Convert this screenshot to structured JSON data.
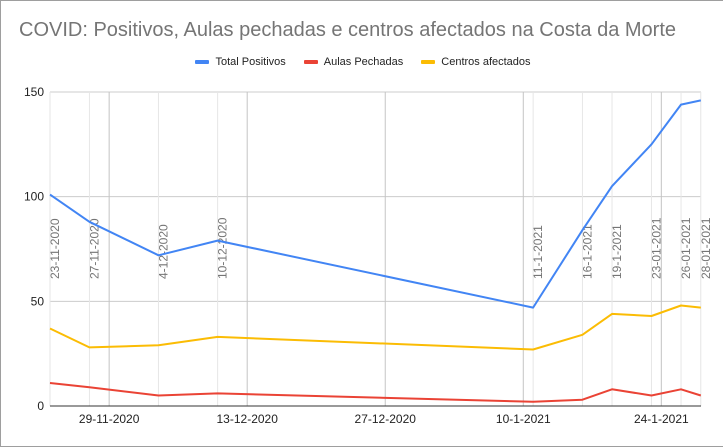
{
  "chart_data": {
    "type": "line",
    "title": "COVID: Positivos, Aulas pechadas e centros afectados na Costa da Morte",
    "xlabel": "",
    "ylabel": "",
    "ylim": [
      0,
      150
    ],
    "y_ticks": [
      0,
      50,
      100,
      150
    ],
    "x_major_ticks": [
      "29-11-2020",
      "13-12-2020",
      "27-12-2020",
      "10-1-2021",
      "24-1-2021"
    ],
    "x": [
      "23-11-2020",
      "27-11-2020",
      "4-12-2020",
      "10-12-2020",
      "11-1-2021",
      "16-1-2021",
      "19-1-2021",
      "23-01-2021",
      "26-01-2021",
      "28-01-2021"
    ],
    "x_day_offsets": [
      0,
      4,
      11,
      17,
      49,
      54,
      57,
      61,
      64,
      66
    ],
    "legend_position": "top",
    "grid": true,
    "series": [
      {
        "name": "Total Positivos",
        "color": "#4285f4",
        "values": [
          101,
          88,
          72,
          79,
          47,
          84,
          105,
          125,
          144,
          146
        ]
      },
      {
        "name": "Aulas Pechadas",
        "color": "#ea4335",
        "values": [
          11,
          9,
          5,
          6,
          2,
          3,
          8,
          5,
          8,
          5
        ]
      },
      {
        "name": "Centros afectados",
        "color": "#fbbc04",
        "values": [
          37,
          28,
          29,
          33,
          27,
          34,
          44,
          43,
          48,
          47
        ]
      }
    ]
  }
}
